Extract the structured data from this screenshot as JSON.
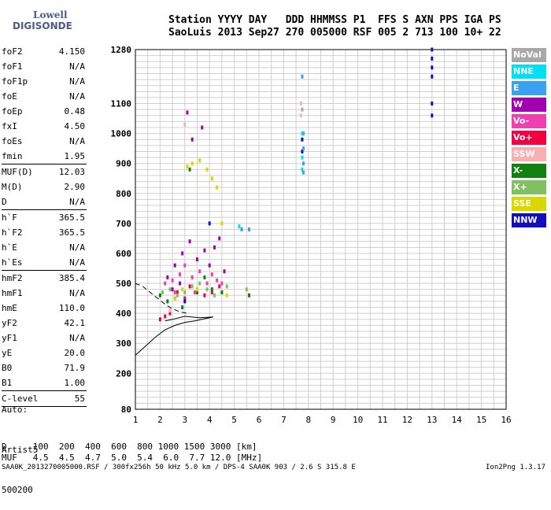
{
  "logo": {
    "top": "Lowell",
    "bottom": "DIGISONDE"
  },
  "header": {
    "line1": "Station YYYY DAY   DDD HHMMSS P1  FFS S AXN PPS IGA PS",
    "line2": "SaoLuis 2013 Sep27 270 005000 RSF 005 2 713 100 10+ 22"
  },
  "params": [
    {
      "k": "foF2",
      "v": "4.150"
    },
    {
      "k": "foF1",
      "v": "N/A"
    },
    {
      "k": "foF1p",
      "v": "N/A"
    },
    {
      "k": "foE",
      "v": "N/A"
    },
    {
      "k": "foEp",
      "v": "0.48"
    },
    {
      "k": "fxI",
      "v": "4.50"
    },
    {
      "k": "foEs",
      "v": "N/A"
    },
    {
      "k": "fmin",
      "v": "1.95"
    },
    {
      "sep": true
    },
    {
      "k": "MUF(D)",
      "v": "12.03"
    },
    {
      "k": "M(D)",
      "v": "2.90"
    },
    {
      "k": "D",
      "v": "N/A"
    },
    {
      "sep": true
    },
    {
      "k": "h`F",
      "v": "365.5"
    },
    {
      "k": "h`F2",
      "v": "365.5"
    },
    {
      "k": "h`E",
      "v": "N/A"
    },
    {
      "k": "h`Es",
      "v": "N/A"
    },
    {
      "sep": true
    },
    {
      "k": "hmF2",
      "v": "385.4"
    },
    {
      "k": "hmF1",
      "v": "N/A"
    },
    {
      "k": "hmE",
      "v": "110.0"
    },
    {
      "k": "yF2",
      "v": "42.1"
    },
    {
      "k": "yF1",
      "v": "N/A"
    },
    {
      "k": "yE",
      "v": "20.0"
    },
    {
      "k": "B0",
      "v": "71.9"
    },
    {
      "k": "B1",
      "v": "1.00"
    },
    {
      "sep": true
    },
    {
      "k": "C-level",
      "v": "55"
    },
    {
      "sep": true
    }
  ],
  "auto": {
    "line1": "Auto:",
    "line2": "Artist5",
    "line3": "500200"
  },
  "bottom": {
    "d_line": "D     100  200  400  600  800 1000 1500 3000 [km]",
    "muf_line": "MUF   4.5  4.5  4.7  5.0  5.4  6.0  7.7 12.0 [MHz]",
    "footer": "SAA0K_2013270005000.RSF / 300fx256h 50 kHz 5.0 km / DPS-4 SAA0K 903 / 2.6 S 315.8 E",
    "version": "Ion2Png 1.3.17"
  },
  "legend": [
    {
      "label": "NoVal",
      "color": "#a8a8a8"
    },
    {
      "label": "NNE",
      "color": "#00e0f0"
    },
    {
      "label": "E",
      "color": "#3aa0f0"
    },
    {
      "label": "W",
      "color": "#a000b0"
    },
    {
      "label": "Vo-",
      "color": "#f040b0"
    },
    {
      "label": "Vo+",
      "color": "#f00040"
    },
    {
      "label": "SSW",
      "color": "#f8b0b0"
    },
    {
      "label": "X-",
      "color": "#108010"
    },
    {
      "label": "X+",
      "color": "#80c060"
    },
    {
      "label": "SSE",
      "color": "#d8d800"
    },
    {
      "label": "NNW",
      "color": "#1010c0"
    }
  ],
  "chart_data": {
    "type": "scatter",
    "title": "",
    "xlabel": "",
    "ylabel": "",
    "xlim": [
      1,
      16
    ],
    "ylim": [
      80,
      1280
    ],
    "x_ticks": [
      "1",
      "2",
      "3",
      "4",
      "5",
      "6",
      "7",
      "8",
      "9",
      "10",
      "11",
      "12",
      "13",
      "14",
      "15",
      "16"
    ],
    "y_ticks": [
      "80",
      "200",
      "300",
      "400",
      "500",
      "600",
      "700",
      "800",
      "900",
      "1000",
      "1100",
      "1280"
    ],
    "grid": true,
    "legend_position": "right",
    "series": [
      {
        "name": "W",
        "color": "#a000b0",
        "points": [
          [
            2.3,
            520
          ],
          [
            2.6,
            560
          ],
          [
            2.9,
            600
          ],
          [
            3.2,
            640
          ],
          [
            3.5,
            580
          ],
          [
            3.8,
            610
          ],
          [
            4.0,
            560
          ],
          [
            4.2,
            620
          ],
          [
            4.4,
            650
          ],
          [
            3.1,
            1070
          ],
          [
            3.3,
            980
          ],
          [
            3.7,
            1020
          ],
          [
            2.5,
            480
          ],
          [
            2.8,
            500
          ],
          [
            4.6,
            540
          ]
        ]
      },
      {
        "name": "Vo-",
        "color": "#f040b0",
        "points": [
          [
            2.2,
            500
          ],
          [
            2.5,
            510
          ],
          [
            2.8,
            530
          ],
          [
            3.0,
            560
          ],
          [
            3.3,
            520
          ],
          [
            3.6,
            540
          ],
          [
            3.9,
            500
          ],
          [
            4.1,
            530
          ],
          [
            4.3,
            510
          ],
          [
            4.5,
            500
          ],
          [
            2.6,
            470
          ],
          [
            3.4,
            470
          ]
        ]
      },
      {
        "name": "Vo+",
        "color": "#f00040",
        "points": [
          [
            2.0,
            380
          ],
          [
            2.2,
            390
          ],
          [
            2.4,
            400
          ],
          [
            2.7,
            470
          ],
          [
            3.0,
            450
          ],
          [
            3.2,
            490
          ],
          [
            3.5,
            480
          ],
          [
            3.8,
            460
          ],
          [
            4.1,
            470
          ],
          [
            4.4,
            490
          ]
        ]
      },
      {
        "name": "X-",
        "color": "#108010",
        "points": [
          [
            2.0,
            460
          ],
          [
            2.3,
            440
          ],
          [
            2.6,
            450
          ],
          [
            2.9,
            420
          ],
          [
            3.2,
            880
          ],
          [
            3.5,
            470
          ],
          [
            3.8,
            520
          ],
          [
            4.1,
            480
          ],
          [
            4.5,
            470
          ],
          [
            5.6,
            460
          ]
        ]
      },
      {
        "name": "X+",
        "color": "#80c060",
        "points": [
          [
            2.1,
            470
          ],
          [
            2.4,
            480
          ],
          [
            2.7,
            460
          ],
          [
            3.0,
            470
          ],
          [
            3.3,
            490
          ],
          [
            3.6,
            500
          ],
          [
            3.9,
            480
          ],
          [
            4.2,
            460
          ],
          [
            4.7,
            490
          ],
          [
            5.5,
            480
          ]
        ]
      },
      {
        "name": "SSE",
        "color": "#d8d800",
        "points": [
          [
            2.6,
            450
          ],
          [
            2.9,
            480
          ],
          [
            3.1,
            890
          ],
          [
            3.3,
            900
          ],
          [
            3.6,
            910
          ],
          [
            3.9,
            880
          ],
          [
            4.1,
            850
          ],
          [
            4.3,
            820
          ],
          [
            4.5,
            700
          ],
          [
            4.7,
            460
          ],
          [
            3.5,
            480
          ]
        ]
      },
      {
        "name": "NNW",
        "color": "#1010c0",
        "points": [
          [
            13.0,
            1280
          ],
          [
            13.0,
            1250
          ],
          [
            13.0,
            1220
          ],
          [
            13.0,
            1190
          ],
          [
            13.0,
            1100
          ],
          [
            13.0,
            1060
          ],
          [
            7.75,
            980
          ],
          [
            7.75,
            940
          ],
          [
            4.0,
            700
          ],
          [
            3.0,
            440
          ]
        ]
      },
      {
        "name": "E",
        "color": "#3aa0f0",
        "points": [
          [
            7.75,
            1190
          ],
          [
            7.8,
            1000
          ],
          [
            7.8,
            950
          ],
          [
            7.8,
            900
          ],
          [
            7.8,
            870
          ],
          [
            5.3,
            680
          ],
          [
            5.6,
            680
          ]
        ]
      },
      {
        "name": "NNE",
        "color": "#00e0f0",
        "points": [
          [
            7.75,
            1000
          ],
          [
            7.75,
            920
          ],
          [
            7.75,
            880
          ],
          [
            5.2,
            690
          ]
        ]
      },
      {
        "name": "SSW",
        "color": "#f8b0b0",
        "points": [
          [
            7.7,
            1100
          ],
          [
            7.7,
            1060
          ],
          [
            2.4,
            410
          ],
          [
            3.0,
            1030
          ]
        ]
      },
      {
        "name": "NoVal",
        "color": "#a8a8a8",
        "points": [
          [
            7.75,
            1080
          ]
        ]
      }
    ],
    "traces": {
      "trace_solid": [
        [
          1.0,
          260
        ],
        [
          1.4,
          290
        ],
        [
          1.8,
          320
        ],
        [
          2.2,
          345
        ],
        [
          2.6,
          360
        ],
        [
          3.0,
          370
        ],
        [
          3.4,
          375
        ],
        [
          3.8,
          382
        ],
        [
          4.15,
          388
        ],
        [
          3.6,
          385
        ],
        [
          3.0,
          390
        ],
        [
          2.5,
          380
        ],
        [
          2.2,
          375
        ]
      ],
      "trace_dashed": [
        [
          1.0,
          500
        ],
        [
          1.3,
          490
        ],
        [
          1.6,
          470
        ],
        [
          1.9,
          450
        ],
        [
          2.2,
          430
        ],
        [
          2.5,
          415
        ],
        [
          2.8,
          405
        ],
        [
          3.1,
          400
        ]
      ]
    }
  }
}
